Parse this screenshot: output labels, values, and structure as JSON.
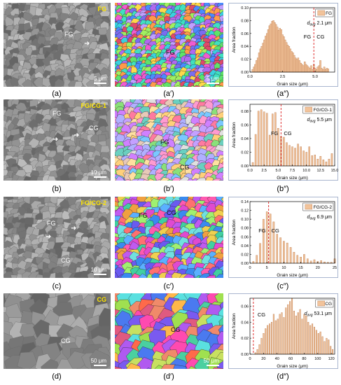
{
  "rows": [
    {
      "sem_tag": "FG",
      "sem_labels": [
        "FG"
      ],
      "scale": "5 μm",
      "ebsd_labels": [
        "FG"
      ],
      "ebsd_scale": "5 μm",
      "captions": [
        "(a)",
        "(a′)",
        "(a″)"
      ],
      "palette": "fine"
    },
    {
      "sem_tag": "FG/CG-1",
      "sem_labels": [
        "FG",
        "CG"
      ],
      "scale": "10 μm",
      "ebsd_labels": [
        "FG",
        "CG"
      ],
      "ebsd_scale": "",
      "captions": [
        "(b)",
        "(b′)",
        "(b″)"
      ],
      "palette": "mixed"
    },
    {
      "sem_tag": "FG/CG-2",
      "sem_labels": [
        "FG",
        "CG"
      ],
      "scale": "10 μm",
      "ebsd_labels": [
        "FG",
        "CG"
      ],
      "ebsd_scale": "",
      "captions": [
        "(c)",
        "(c′)",
        "(c″)"
      ],
      "palette": "mixed2"
    },
    {
      "sem_tag": "CG",
      "sem_labels": [
        "CG"
      ],
      "scale": "50 μm",
      "ebsd_labels": [
        "CG"
      ],
      "ebsd_scale": "50 μm",
      "captions": [
        "(d)",
        "(d′)",
        "(d″)"
      ],
      "palette": "coarse"
    }
  ],
  "chart_data": [
    {
      "type": "bar",
      "legend": "FG",
      "annotation_prefix": "d",
      "annotation_sub": "avg",
      "annotation_value": " 2.1 μm",
      "xlabel": "Grain size (μm)",
      "ylabel": "Area fraction",
      "xlim": [
        0,
        6.5
      ],
      "ylim": [
        0,
        0.1
      ],
      "xticks": [
        0.0,
        2.5,
        5.0
      ],
      "xtick_labels": [
        "0.0",
        "2.5",
        "5.0"
      ],
      "yticks": [
        0.0,
        0.02,
        0.04,
        0.06,
        0.08,
        0.1
      ],
      "ytick_labels": [
        "0.00",
        "0.02",
        "0.04",
        "0.06",
        "0.08",
        "0.10"
      ],
      "dashed_x": 4.9,
      "region_labels": [
        "FG",
        "CG"
      ],
      "bar_width": 0.11,
      "x": [
        0.2,
        0.3,
        0.4,
        0.5,
        0.6,
        0.7,
        0.8,
        0.9,
        1.0,
        1.1,
        1.2,
        1.3,
        1.4,
        1.5,
        1.6,
        1.7,
        1.8,
        1.9,
        2.0,
        2.1,
        2.2,
        2.3,
        2.4,
        2.5,
        2.6,
        2.7,
        2.8,
        2.9,
        3.0,
        3.1,
        3.2,
        3.3,
        3.4,
        3.5,
        3.6,
        3.7,
        3.8,
        3.9,
        4.0,
        4.1,
        4.2,
        4.3,
        4.4,
        4.5,
        4.6,
        4.7,
        4.8,
        4.9,
        5.0,
        5.1,
        5.2,
        5.3,
        5.4,
        5.5,
        5.6,
        5.7,
        5.8,
        5.9,
        6.0
      ],
      "values": [
        0.004,
        0.008,
        0.012,
        0.018,
        0.022,
        0.03,
        0.036,
        0.04,
        0.045,
        0.05,
        0.056,
        0.06,
        0.066,
        0.072,
        0.075,
        0.079,
        0.08,
        0.077,
        0.074,
        0.07,
        0.065,
        0.068,
        0.066,
        0.058,
        0.055,
        0.05,
        0.046,
        0.042,
        0.04,
        0.036,
        0.032,
        0.03,
        0.026,
        0.022,
        0.02,
        0.022,
        0.018,
        0.014,
        0.012,
        0.01,
        0.016,
        0.012,
        0.01,
        0.008,
        0.006,
        0.01,
        0.004,
        0.012,
        0.006,
        0.004,
        0.008,
        0.01,
        0.018,
        0.006,
        0.004,
        0.008,
        0.004,
        0.006,
        0.005
      ]
    },
    {
      "type": "bar",
      "legend": "FG/CG-1",
      "annotation_prefix": "d",
      "annotation_sub": "avg",
      "annotation_value": " 5.5 μm",
      "xlabel": "Grain size (μm)",
      "ylabel": "Area fraction",
      "xlim": [
        0,
        15
      ],
      "ylim": [
        0,
        0.09
      ],
      "xticks": [
        0.0,
        2.5,
        5.0,
        7.5,
        10.0,
        12.5,
        15.0
      ],
      "xtick_labels": [
        "0.0",
        "2.5",
        "5.0",
        "7.5",
        "10.0",
        "12.5",
        "15.0"
      ],
      "yticks": [
        0.0,
        0.02,
        0.04,
        0.06,
        0.08
      ],
      "ytick_labels": [
        "0.00",
        "0.02",
        "0.04",
        "0.06",
        "0.08"
      ],
      "dashed_x": 5.5,
      "region_labels": [
        "FG",
        "CG"
      ],
      "bar_width": 0.26,
      "x": [
        0.5,
        1.0,
        1.5,
        2.0,
        2.5,
        3.0,
        3.5,
        4.0,
        4.5,
        5.0,
        5.5,
        6.0,
        6.5,
        7.0,
        7.5,
        8.0,
        8.5,
        9.0,
        9.5,
        10.0,
        10.5,
        11.0,
        11.5,
        12.0,
        12.5,
        13.0,
        13.5,
        14.0,
        14.5
      ],
      "values": [
        0.005,
        0.046,
        0.08,
        0.082,
        0.079,
        0.077,
        0.045,
        0.076,
        0.078,
        0.055,
        0.043,
        0.042,
        0.034,
        0.03,
        0.028,
        0.026,
        0.032,
        0.028,
        0.022,
        0.02,
        0.028,
        0.015,
        0.016,
        0.01,
        0.014,
        0.009,
        0.006,
        0.01,
        0.018
      ]
    },
    {
      "type": "bar",
      "legend": "FG/CG-2",
      "annotation_prefix": "d",
      "annotation_sub": "avg",
      "annotation_value": " 6.9 μm",
      "xlabel": "Grain size (μm)",
      "ylabel": "Area fraction",
      "xlim": [
        0,
        25
      ],
      "ylim": [
        0,
        0.14
      ],
      "xticks": [
        0,
        5,
        10,
        15,
        20,
        25
      ],
      "xtick_labels": [
        "0",
        "5",
        "10",
        "15",
        "20",
        "25"
      ],
      "yticks": [
        0.0,
        0.02,
        0.04,
        0.06,
        0.08,
        0.1,
        0.12,
        0.14
      ],
      "ytick_labels": [
        "0.00",
        "0.02",
        "0.04",
        "0.06",
        "0.08",
        "0.10",
        "0.12",
        "0.14"
      ],
      "dashed_x": 5.5,
      "region_labels": [
        "FG",
        "CG"
      ],
      "bar_width": 0.45,
      "x": [
        1,
        2,
        3,
        4,
        5,
        6,
        7,
        8,
        9,
        10,
        11,
        12,
        13,
        14,
        15,
        16,
        17,
        18,
        19,
        20,
        21,
        22,
        23,
        24,
        25
      ],
      "values": [
        0.004,
        0.018,
        0.045,
        0.1,
        0.117,
        0.112,
        0.094,
        0.066,
        0.058,
        0.05,
        0.046,
        0.036,
        0.025,
        0.018,
        0.014,
        0.02,
        0.01,
        0.005,
        0.008,
        0.004,
        0.006,
        0.003,
        0.002,
        0.002,
        0.01
      ]
    },
    {
      "type": "bar",
      "legend": "CG",
      "annotation_prefix": "d",
      "annotation_sub": "avg",
      "annotation_value": " 53.1 μm",
      "xlabel": "Grain size (μm)",
      "ylabel": "Area fraction",
      "xlim": [
        0,
        125
      ],
      "ylim": [
        0,
        0.07
      ],
      "xticks": [
        0,
        20,
        40,
        60,
        80,
        100,
        120
      ],
      "xtick_labels": [
        "0",
        "20",
        "40",
        "60",
        "80",
        "100",
        "120"
      ],
      "yticks": [
        0.0,
        0.02,
        0.04,
        0.06
      ],
      "ytick_labels": [
        "0.00",
        "0.02",
        "0.04",
        "0.06"
      ],
      "dashed_x": 5,
      "region_labels": [
        "CG"
      ],
      "bar_width": 1.7,
      "x": [
        2,
        5,
        8,
        11,
        14,
        17,
        20,
        23,
        26,
        29,
        32,
        35,
        38,
        41,
        44,
        47,
        50,
        53,
        56,
        59,
        62,
        65,
        68,
        71,
        74,
        77,
        80,
        83,
        86,
        89,
        92,
        95,
        98,
        101,
        104,
        107,
        110,
        113,
        116,
        119,
        122
      ],
      "values": [
        0.0,
        0.0,
        0.002,
        0.006,
        0.012,
        0.02,
        0.026,
        0.032,
        0.036,
        0.038,
        0.04,
        0.05,
        0.042,
        0.044,
        0.05,
        0.052,
        0.046,
        0.058,
        0.062,
        0.066,
        0.07,
        0.054,
        0.048,
        0.052,
        0.056,
        0.044,
        0.05,
        0.048,
        0.04,
        0.036,
        0.038,
        0.034,
        0.03,
        0.026,
        0.028,
        0.022,
        0.016,
        0.02,
        0.018,
        0.01,
        0.006
      ]
    }
  ]
}
